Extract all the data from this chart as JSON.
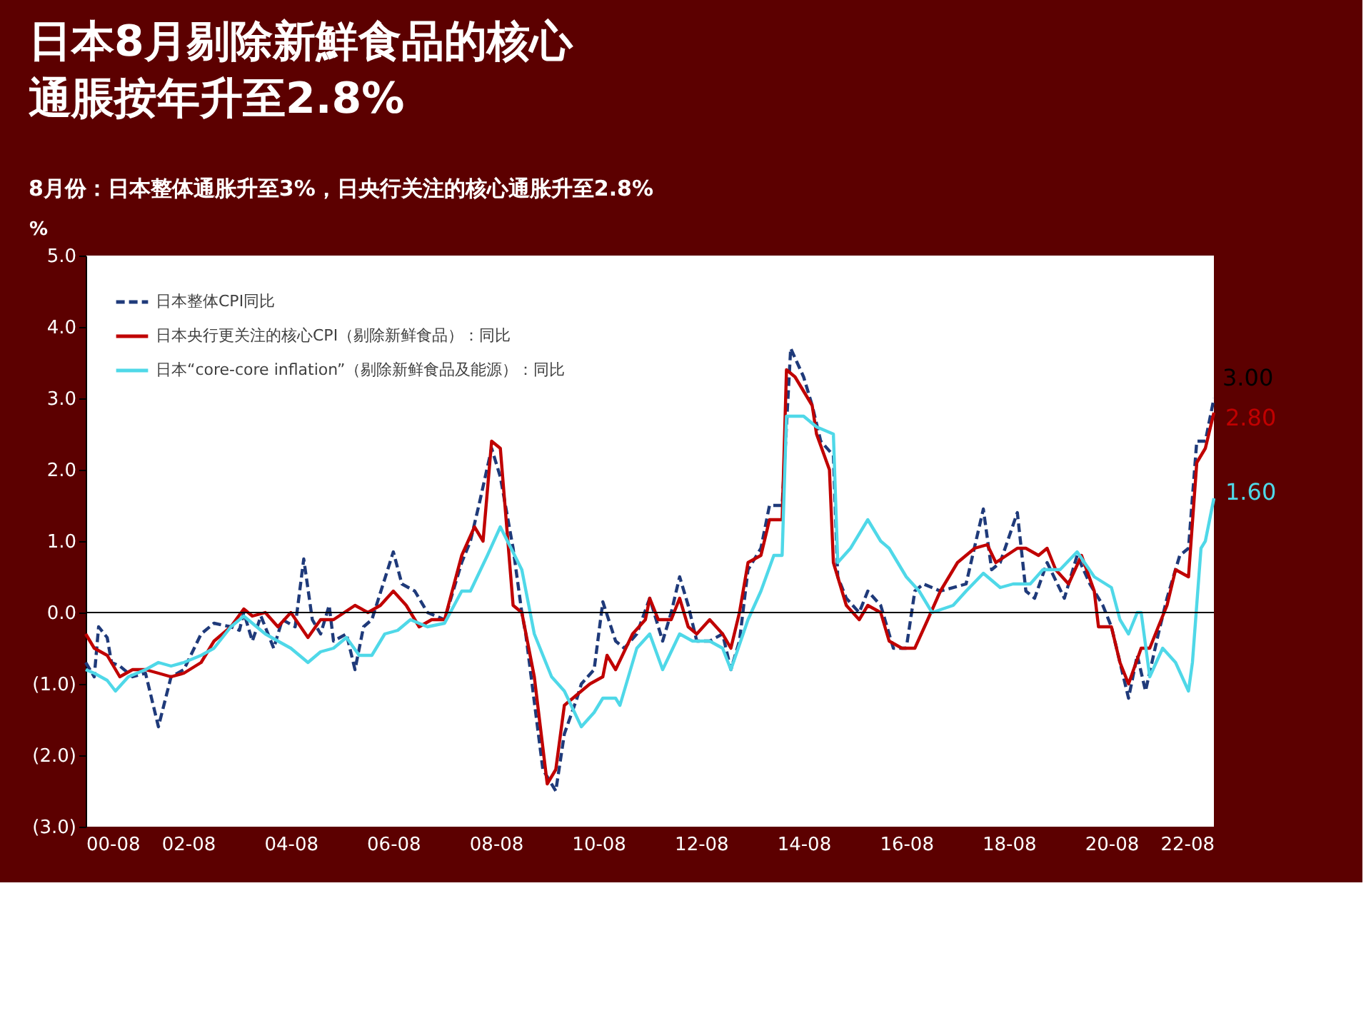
{
  "chart_data": {
    "type": "line",
    "title": "日本8月剔除新鮮食品的核心通脹按年升至2.8%",
    "subtitle": "8月份：日本整体通胀升至3%，日央行关注的核心通胀升至2.8%",
    "ylabel": "%",
    "ylim": [
      -3,
      5
    ],
    "yticks": [
      {
        "value": -3,
        "label": "(3.0)"
      },
      {
        "value": -2,
        "label": "(2.0)"
      },
      {
        "value": -1,
        "label": "(1.0)"
      },
      {
        "value": 0,
        "label": "0.0"
      },
      {
        "value": 1,
        "label": "1.0"
      },
      {
        "value": 2,
        "label": "2.0"
      },
      {
        "value": 3,
        "label": "3.0"
      },
      {
        "value": 4,
        "label": "4.0"
      },
      {
        "value": 5,
        "label": "5.0"
      }
    ],
    "xlim": [
      "2000-08",
      "2022-08"
    ],
    "xticks": [
      {
        "value": "2000-08",
        "label": "00-08"
      },
      {
        "value": "2002-08",
        "label": "02-08"
      },
      {
        "value": "2004-08",
        "label": "04-08"
      },
      {
        "value": "2006-08",
        "label": "06-08"
      },
      {
        "value": "2008-08",
        "label": "08-08"
      },
      {
        "value": "2010-08",
        "label": "10-08"
      },
      {
        "value": "2012-08",
        "label": "12-08"
      },
      {
        "value": "2014-08",
        "label": "14-08"
      },
      {
        "value": "2016-08",
        "label": "16-08"
      },
      {
        "value": "2018-08",
        "label": "18-08"
      },
      {
        "value": "2020-08",
        "label": "20-08"
      },
      {
        "value": "2022-08",
        "label": "22-08"
      }
    ],
    "grid": false,
    "legend": "top left",
    "marker": "none",
    "ref_lines": [
      {
        "axis": "y",
        "value": 0,
        "color": "#000000"
      }
    ],
    "annotations": [
      {
        "text": "3.00",
        "x": "2022-08",
        "y": 3.0
      },
      {
        "text": "2.80",
        "x": "2022-08",
        "y": 2.8
      },
      {
        "text": "1.60",
        "x": "2022-08",
        "y": 1.6
      }
    ],
    "series": [
      {
        "name": "日本整体CPI同比",
        "color": "#1f3a7a",
        "line_style": "dashed",
        "x": [
          "2000-08",
          "2000-10",
          "2000-11",
          "2001-01",
          "2001-02",
          "2001-04",
          "2001-07",
          "2001-10",
          "2002-01",
          "2002-04",
          "2002-07",
          "2002-11",
          "2003-02",
          "2003-06",
          "2003-08",
          "2003-09",
          "2003-11",
          "2004-01",
          "2004-04",
          "2004-06",
          "2004-09",
          "2004-11",
          "2005-01",
          "2005-03",
          "2005-05",
          "2005-06",
          "2005-09",
          "2005-11",
          "2006-01",
          "2006-03",
          "2006-08",
          "2006-10",
          "2007-01",
          "2007-04",
          "2007-08",
          "2007-12",
          "2008-02",
          "2008-04",
          "2008-07",
          "2008-09",
          "2008-12",
          "2009-02",
          "2009-03",
          "2009-07",
          "2009-10",
          "2009-12",
          "2010-03",
          "2010-04",
          "2010-07",
          "2010-09",
          "2010-12",
          "2011-02",
          "2011-05",
          "2011-08",
          "2011-11",
          "2012-01",
          "2012-03",
          "2012-05",
          "2012-07",
          "2012-10",
          "2013-01",
          "2013-03",
          "2013-05",
          "2013-07",
          "2013-10",
          "2013-12",
          "2014-03",
          "2014-05",
          "2014-08",
          "2014-10",
          "2014-12",
          "2015-03",
          "2015-04",
          "2015-06",
          "2015-09",
          "2015-11",
          "2016-02",
          "2016-05",
          "2016-08",
          "2016-10",
          "2016-12",
          "2017-04",
          "2017-10",
          "2018-02",
          "2018-04",
          "2018-06",
          "2018-10",
          "2018-12",
          "2019-02",
          "2019-05",
          "2019-09",
          "2019-12",
          "2020-03",
          "2020-06",
          "2020-08",
          "2020-12",
          "2021-02",
          "2021-04",
          "2021-07",
          "2021-09",
          "2021-12",
          "2022-02",
          "2022-04",
          "2022-06",
          "2022-08"
        ],
        "values": [
          -0.7,
          -0.9,
          -0.2,
          -0.35,
          -0.7,
          -0.75,
          -0.9,
          -0.85,
          -1.6,
          -0.9,
          -0.8,
          -0.3,
          -0.15,
          -0.2,
          -0.25,
          0.0,
          -0.4,
          -0.05,
          -0.5,
          -0.1,
          -0.2,
          0.75,
          -0.1,
          -0.3,
          0.1,
          -0.4,
          -0.3,
          -0.8,
          -0.2,
          -0.1,
          0.85,
          0.4,
          0.3,
          0.0,
          -0.1,
          0.7,
          1.0,
          1.5,
          2.3,
          1.9,
          0.9,
          0.0,
          -0.3,
          -2.2,
          -2.5,
          -1.7,
          -1.2,
          -1.0,
          -0.8,
          0.15,
          -0.4,
          -0.5,
          -0.3,
          0.2,
          -0.4,
          0.0,
          0.5,
          0.1,
          -0.4,
          -0.4,
          -0.3,
          -0.8,
          -0.4,
          0.6,
          0.9,
          1.5,
          1.5,
          3.7,
          3.3,
          2.9,
          2.4,
          2.2,
          0.5,
          0.2,
          0.0,
          0.3,
          0.1,
          -0.5,
          -0.5,
          0.3,
          0.4,
          0.3,
          0.4,
          1.45,
          0.6,
          0.7,
          1.4,
          0.3,
          0.2,
          0.7,
          0.2,
          0.8,
          0.4,
          0.1,
          -0.2,
          -1.2,
          -0.6,
          -1.1,
          -0.3,
          0.2,
          0.8,
          0.9,
          2.4,
          2.4,
          3.0
        ]
      },
      {
        "name": "日本央行更关注的核心CPI（剔除新鲜食品）：同比",
        "color": "#c00000",
        "line_style": "solid",
        "x": [
          "2000-08",
          "2000-10",
          "2001-01",
          "2001-04",
          "2001-07",
          "2001-10",
          "2002-01",
          "2002-04",
          "2002-07",
          "2002-11",
          "2003-02",
          "2003-06",
          "2003-09",
          "2003-11",
          "2004-02",
          "2004-05",
          "2004-08",
          "2004-12",
          "2005-03",
          "2005-06",
          "2005-11",
          "2006-02",
          "2006-05",
          "2006-08",
          "2006-11",
          "2007-02",
          "2007-05",
          "2007-08",
          "2007-12",
          "2008-03",
          "2008-05",
          "2008-07",
          "2008-09",
          "2008-12",
          "2009-02",
          "2009-05",
          "2009-08",
          "2009-10",
          "2009-12",
          "2010-04",
          "2010-06",
          "2010-09",
          "2010-10",
          "2010-12",
          "2011-04",
          "2011-07",
          "2011-08",
          "2011-10",
          "2012-01",
          "2012-03",
          "2012-05",
          "2012-07",
          "2012-10",
          "2013-01",
          "2013-03",
          "2013-05",
          "2013-07",
          "2013-10",
          "2013-12",
          "2014-03",
          "2014-04",
          "2014-06",
          "2014-10",
          "2014-11",
          "2015-02",
          "2015-03",
          "2015-06",
          "2015-09",
          "2015-11",
          "2016-02",
          "2016-04",
          "2016-07",
          "2016-10",
          "2017-01",
          "2017-04",
          "2017-08",
          "2017-12",
          "2018-03",
          "2018-05",
          "2018-10",
          "2018-12",
          "2019-03",
          "2019-05",
          "2019-07",
          "2019-10",
          "2020-01",
          "2020-04",
          "2020-05",
          "2020-08",
          "2020-10",
          "2020-12",
          "2021-03",
          "2021-05",
          "2021-07",
          "2021-09",
          "2021-11",
          "2022-02",
          "2022-04",
          "2022-06",
          "2022-08"
        ],
        "values": [
          -0.3,
          -0.5,
          -0.6,
          -0.9,
          -0.8,
          -0.8,
          -0.85,
          -0.9,
          -0.85,
          -0.7,
          -0.4,
          -0.2,
          0.05,
          -0.05,
          0.0,
          -0.2,
          0.0,
          -0.35,
          -0.1,
          -0.1,
          0.1,
          0.0,
          0.1,
          0.3,
          0.1,
          -0.2,
          -0.1,
          -0.1,
          0.8,
          1.2,
          1.0,
          2.4,
          2.3,
          0.1,
          0.0,
          -0.9,
          -2.4,
          -2.2,
          -1.3,
          -1.1,
          -1.0,
          -0.9,
          -0.6,
          -0.8,
          -0.3,
          -0.1,
          0.2,
          -0.1,
          -0.1,
          0.2,
          -0.2,
          -0.3,
          -0.1,
          -0.3,
          -0.5,
          0.0,
          0.7,
          0.8,
          1.3,
          1.3,
          3.4,
          3.3,
          2.9,
          2.5,
          2.0,
          0.7,
          0.1,
          -0.1,
          0.1,
          0.0,
          -0.4,
          -0.5,
          -0.5,
          -0.1,
          0.3,
          0.7,
          0.9,
          0.95,
          0.7,
          0.9,
          0.9,
          0.8,
          0.9,
          0.6,
          0.4,
          0.8,
          0.3,
          -0.2,
          -0.2,
          -0.7,
          -1.0,
          -0.5,
          -0.5,
          -0.2,
          0.1,
          0.6,
          0.5,
          2.1,
          2.3,
          2.8
        ]
      },
      {
        "name": "日本“core-core inflation”（剔除新鲜食品及能源）：同比",
        "color": "#4fd8e8",
        "line_style": "solid",
        "x": [
          "2000-08",
          "2000-10",
          "2001-01",
          "2001-03",
          "2001-06",
          "2001-10",
          "2002-01",
          "2002-04",
          "2002-07",
          "2002-11",
          "2003-02",
          "2003-06",
          "2003-09",
          "2003-11",
          "2004-02",
          "2004-05",
          "2004-08",
          "2004-12",
          "2005-03",
          "2005-06",
          "2005-09",
          "2005-12",
          "2006-03",
          "2006-06",
          "2006-09",
          "2006-12",
          "2007-04",
          "2007-08",
          "2007-12",
          "2008-02",
          "2008-06",
          "2008-09",
          "2009-02",
          "2009-05",
          "2009-09",
          "2009-12",
          "2010-04",
          "2010-07",
          "2010-09",
          "2010-12",
          "2011-01",
          "2011-05",
          "2011-08",
          "2011-11",
          "2012-03",
          "2012-06",
          "2012-10",
          "2013-01",
          "2013-03",
          "2013-07",
          "2013-10",
          "2014-01",
          "2014-03",
          "2014-04",
          "2014-08",
          "2014-11",
          "2015-03",
          "2015-04",
          "2015-07",
          "2015-11",
          "2016-02",
          "2016-04",
          "2016-08",
          "2016-11",
          "2017-02",
          "2017-07",
          "2017-10",
          "2018-02",
          "2018-06",
          "2018-09",
          "2019-01",
          "2019-04",
          "2019-08",
          "2019-12",
          "2020-04",
          "2020-08",
          "2020-10",
          "2020-12",
          "2021-02",
          "2021-03",
          "2021-05",
          "2021-08",
          "2021-11",
          "2022-02",
          "2022-03",
          "2022-05",
          "2022-06",
          "2022-08"
        ],
        "values": [
          -0.8,
          -0.85,
          -0.95,
          -1.1,
          -0.9,
          -0.8,
          -0.7,
          -0.75,
          -0.7,
          -0.6,
          -0.5,
          -0.2,
          -0.05,
          -0.15,
          -0.3,
          -0.4,
          -0.5,
          -0.7,
          -0.55,
          -0.5,
          -0.35,
          -0.6,
          -0.6,
          -0.3,
          -0.25,
          -0.1,
          -0.2,
          -0.15,
          0.3,
          0.3,
          0.8,
          1.2,
          0.6,
          -0.3,
          -0.9,
          -1.1,
          -1.6,
          -1.4,
          -1.2,
          -1.2,
          -1.3,
          -0.5,
          -0.3,
          -0.8,
          -0.3,
          -0.4,
          -0.4,
          -0.5,
          -0.8,
          -0.1,
          0.3,
          0.8,
          0.8,
          2.75,
          2.75,
          2.6,
          2.5,
          0.7,
          0.9,
          1.3,
          1.0,
          0.9,
          0.5,
          0.3,
          0.0,
          0.1,
          0.3,
          0.55,
          0.35,
          0.4,
          0.4,
          0.6,
          0.6,
          0.85,
          0.5,
          0.35,
          -0.1,
          -0.3,
          0.0,
          0.0,
          -0.9,
          -0.5,
          -0.7,
          -1.1,
          -0.7,
          0.9,
          1.0,
          1.6
        ]
      }
    ]
  }
}
